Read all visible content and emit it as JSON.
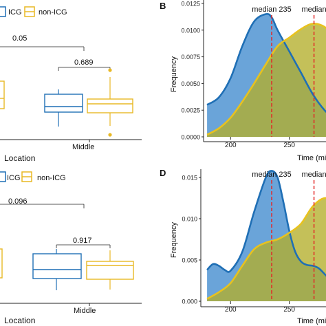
{
  "colors": {
    "icg": "#1f6fb5",
    "icg_fill": "#6aa4d9",
    "non_icg": "#e8b824",
    "non_icg_fill": "#b4ae2a",
    "overlap_fill": "#9aa03a",
    "median_line": "#e32626",
    "axis": "#222222",
    "text": "#111111"
  },
  "chart_data": [
    {
      "panel": "",
      "type": "boxplot",
      "legend": [
        "ICG",
        "non-ICG"
      ],
      "xlabel": "Location",
      "categories": [
        "Middle"
      ],
      "brackets": [
        {
          "label": "0.05",
          "scope": "across locations"
        },
        {
          "label": "0.689",
          "scope": "Middle"
        }
      ],
      "boxes": [
        {
          "group": "ICG",
          "category": "Middle",
          "q1": 0.36,
          "median": 0.46,
          "q3": 0.58,
          "min": 0.12,
          "max": 0.72
        },
        {
          "group": "non-ICG",
          "category": "Middle",
          "q1": 0.36,
          "median": 0.5,
          "q3": 0.58,
          "min": 0.2,
          "max": 0.73,
          "outliers": [
            0.96,
            0.04
          ]
        }
      ]
    },
    {
      "panel": "B",
      "type": "area",
      "xlabel": "Time (mi",
      "ylabel": "Frequency",
      "x_ticks": [
        "200",
        "250"
      ],
      "y_ticks": [
        "0.0000",
        "0.0025",
        "0.0050",
        "0.0075",
        "0.0100",
        "0.0125"
      ],
      "xlim": [
        170,
        290
      ],
      "ylim": [
        0,
        0.0125
      ],
      "series": [
        {
          "name": "ICG",
          "x": [
            180,
            190,
            200,
            210,
            220,
            230,
            235,
            240,
            250,
            260,
            270,
            280,
            290
          ],
          "y": [
            0.003,
            0.0037,
            0.0055,
            0.0085,
            0.0108,
            0.0115,
            0.0112,
            0.01,
            0.008,
            0.006,
            0.004,
            0.0025,
            0.0015
          ]
        },
        {
          "name": "non-ICG",
          "x": [
            180,
            190,
            200,
            210,
            220,
            230,
            240,
            250,
            260,
            270,
            280,
            290
          ],
          "y": [
            0.0002,
            0.0008,
            0.0018,
            0.0033,
            0.005,
            0.0068,
            0.0085,
            0.0093,
            0.0101,
            0.0106,
            0.0103,
            0.0092
          ]
        }
      ],
      "medians": [
        {
          "label": "median 235",
          "x": 235
        },
        {
          "label": "median",
          "x": 271
        }
      ]
    },
    {
      "panel": "",
      "type": "boxplot",
      "legend": [
        "ICG",
        "non-ICG"
      ],
      "xlabel": "Location",
      "categories": [
        "Middle"
      ],
      "brackets": [
        {
          "label": "0.096",
          "scope": "across locations"
        },
        {
          "label": "0.917",
          "scope": "Middle"
        }
      ],
      "boxes": [
        {
          "group": "ICG",
          "category": "Middle",
          "q1": 0.28,
          "median": 0.42,
          "q3": 0.64,
          "min": 0.12,
          "max": 0.73
        },
        {
          "group": "non-ICG",
          "category": "Middle",
          "q1": 0.3,
          "median": 0.5,
          "q3": 0.6,
          "min": 0.14,
          "max": 0.69
        }
      ]
    },
    {
      "panel": "D",
      "type": "area",
      "xlabel": "Time (mi",
      "ylabel": "Frequency",
      "x_ticks": [
        "200",
        "250"
      ],
      "y_ticks": [
        "0.000",
        "0.005",
        "0.010",
        "0.015"
      ],
      "xlim": [
        170,
        290
      ],
      "ylim": [
        0,
        0.016
      ],
      "series": [
        {
          "name": "ICG",
          "x": [
            180,
            185,
            190,
            195,
            200,
            210,
            220,
            230,
            235,
            240,
            245,
            250,
            255,
            260,
            265,
            270,
            275,
            280,
            290
          ],
          "y": [
            0.0038,
            0.0045,
            0.0043,
            0.0038,
            0.0037,
            0.006,
            0.0108,
            0.015,
            0.0158,
            0.015,
            0.012,
            0.0085,
            0.006,
            0.0048,
            0.0044,
            0.0043,
            0.004,
            0.0033,
            0.0018
          ]
        },
        {
          "name": "non-ICG",
          "x": [
            180,
            190,
            200,
            210,
            220,
            230,
            240,
            250,
            260,
            270,
            280,
            290
          ],
          "y": [
            0.0003,
            0.0011,
            0.0022,
            0.0043,
            0.0063,
            0.0071,
            0.0075,
            0.0083,
            0.0094,
            0.0115,
            0.0125,
            0.012
          ]
        }
      ],
      "medians": [
        {
          "label": "median 235",
          "x": 235
        },
        {
          "label": "median",
          "x": 271
        }
      ]
    }
  ]
}
